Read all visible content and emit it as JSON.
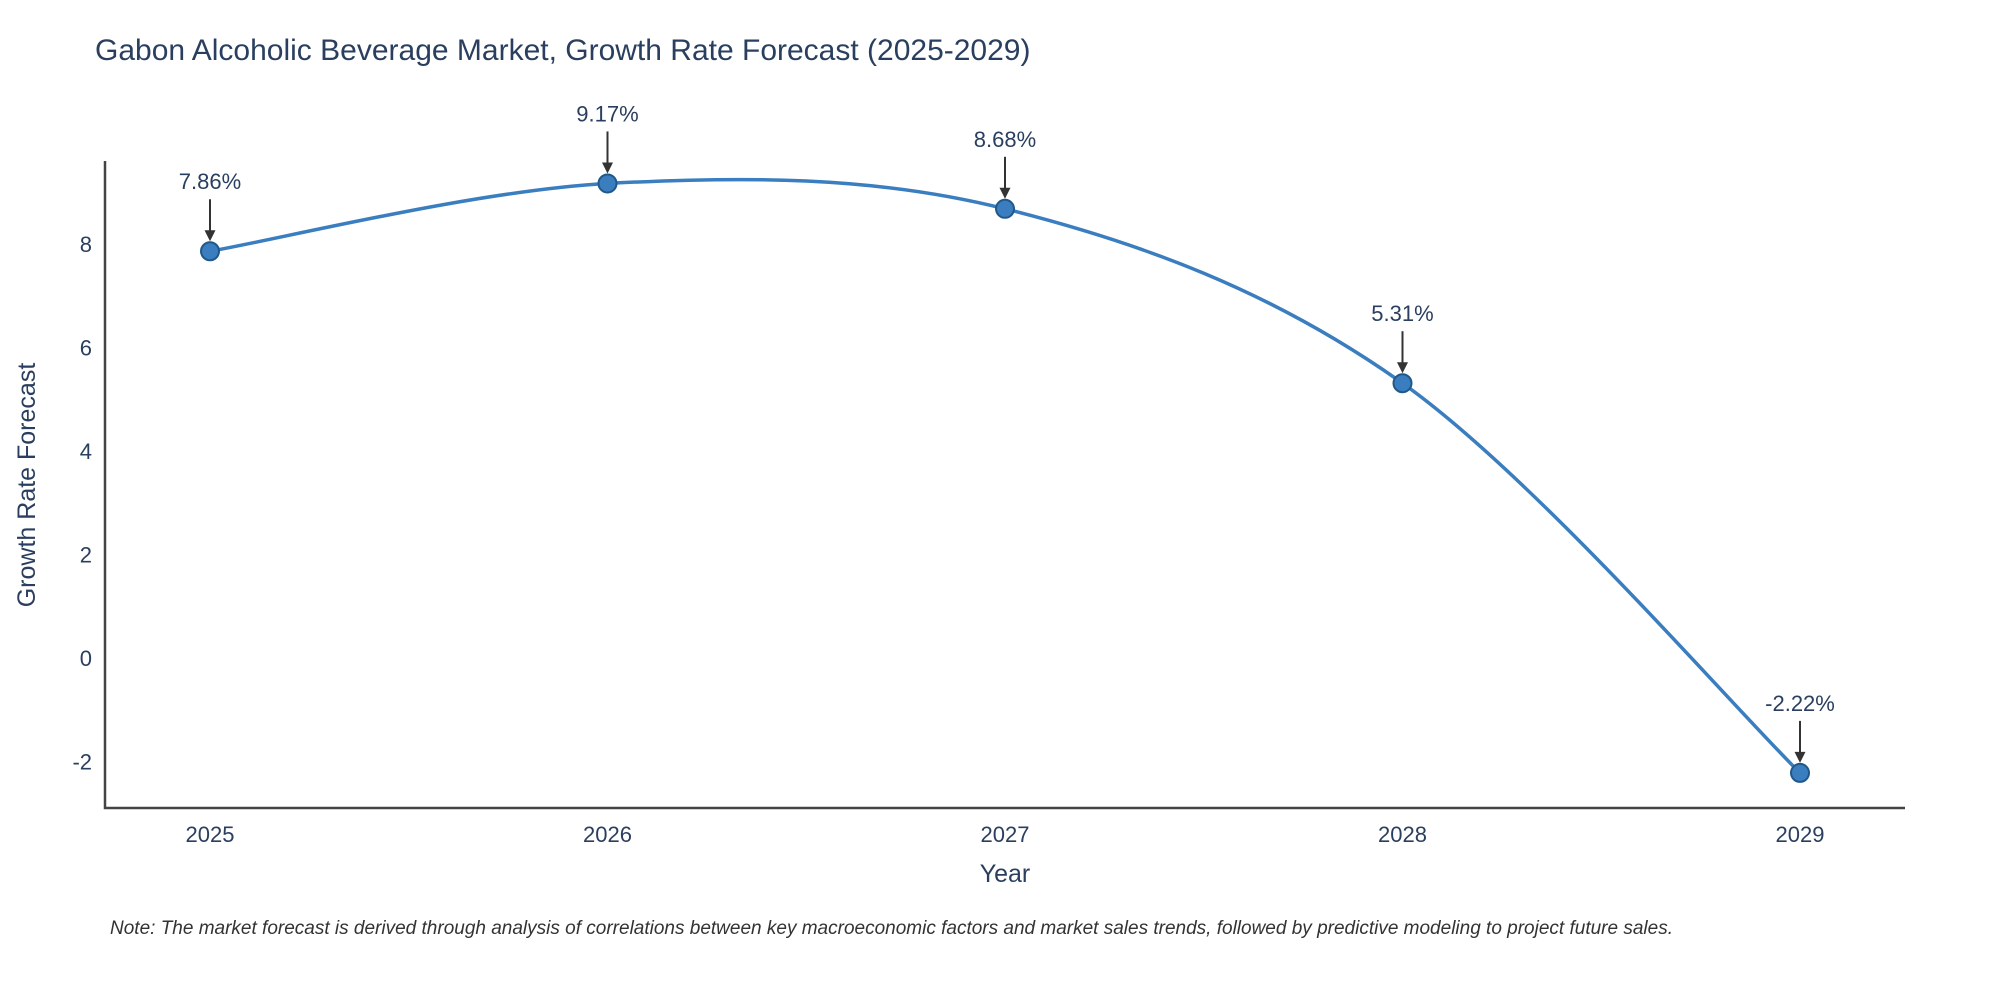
{
  "chart_data": {
    "type": "line",
    "title": "Gabon Alcoholic Beverage Market, Growth Rate Forecast (2025-2029)",
    "xlabel": "Year",
    "ylabel": "Growth Rate Forecast",
    "x": [
      2025,
      2026,
      2027,
      2028,
      2029
    ],
    "x_tick_labels": [
      "2025",
      "2026",
      "2027",
      "2028",
      "2029"
    ],
    "values": [
      7.86,
      9.17,
      8.68,
      5.31,
      -2.22
    ],
    "point_labels": [
      "7.86%",
      "9.17%",
      "8.68%",
      "5.31%",
      "-2.22%"
    ],
    "y_ticks": [
      -2,
      0,
      2,
      4,
      6,
      8
    ],
    "ylim": [
      -3.0,
      9.6
    ],
    "grid": false,
    "legend_position": "none",
    "line_color": "#3a7ebf",
    "marker_edge_color": "#21588a",
    "axis_color": "#444444",
    "text_color": "#2a3f5f",
    "annotation_color": "#2a3f5f",
    "arrow_color": "#333333",
    "title_color": "#2a3f5f"
  },
  "note": {
    "text": "Note: The market forecast is derived through analysis of correlations between key macroeconomic factors and market sales trends, followed by predictive modeling to project future sales."
  }
}
